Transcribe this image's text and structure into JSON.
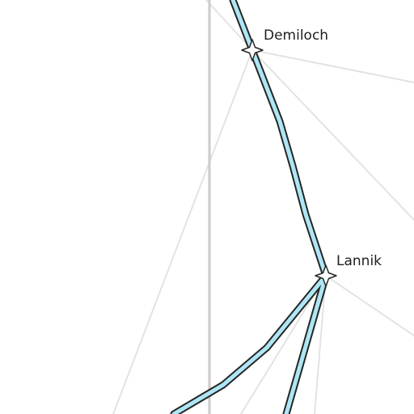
{
  "map": {
    "colors": {
      "background": "#ffffff",
      "road_minor": "#e3e3e3",
      "road_main": "#cbcbcb",
      "trail_fill": "#aee6f5",
      "trail_casing": "#262626",
      "marker_fill": "#ffffff",
      "marker_stroke": "#262626",
      "label": "#1e1e1e"
    },
    "places": [
      {
        "id": "demiloch",
        "name": "Demiloch",
        "icon": "four-point-star-icon"
      },
      {
        "id": "lannik",
        "name": "Lannik",
        "icon": "four-point-star-icon"
      }
    ]
  }
}
